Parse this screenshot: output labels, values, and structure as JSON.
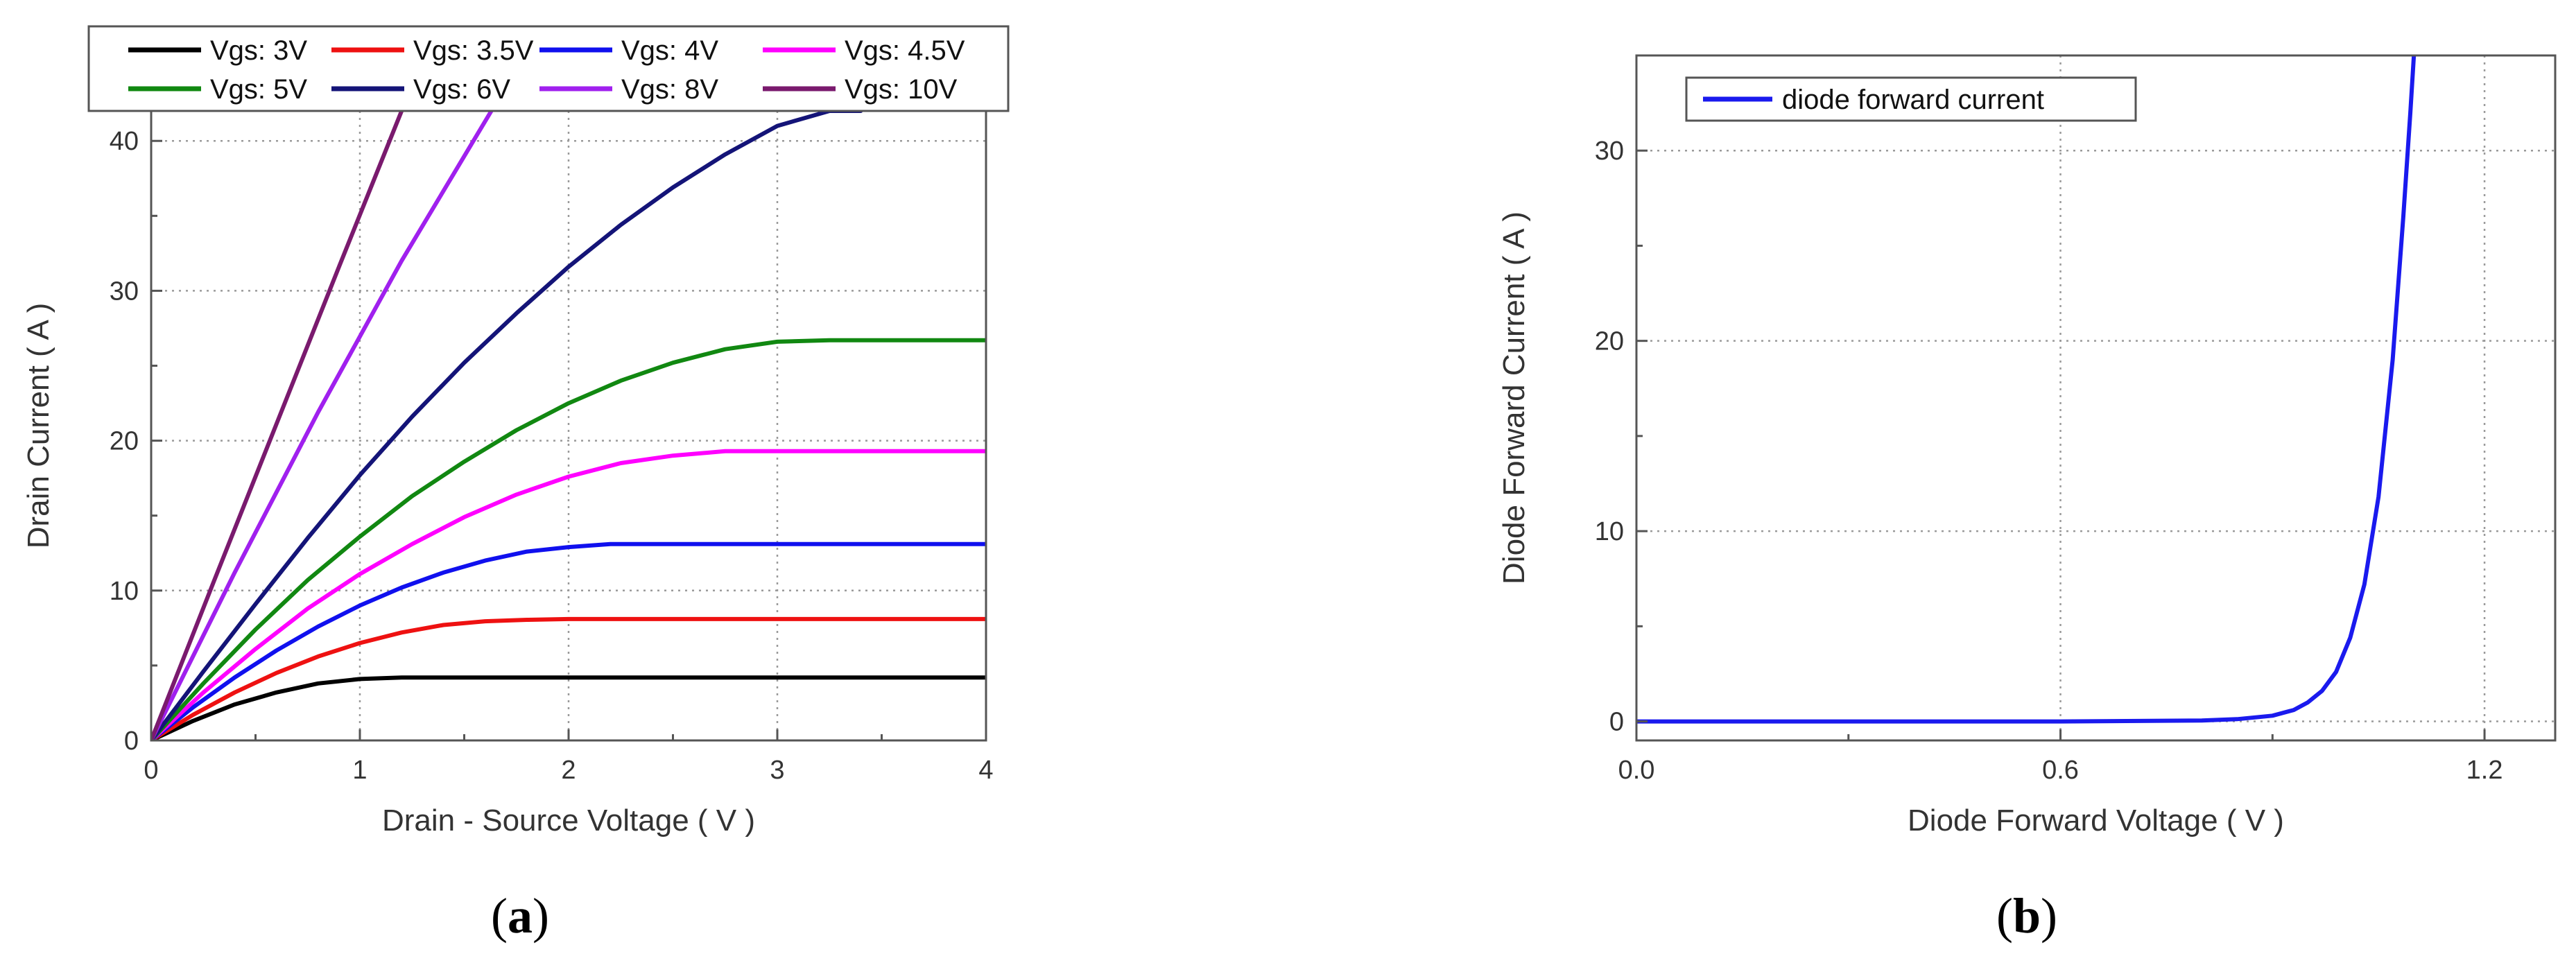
{
  "chart_data": [
    {
      "type": "line",
      "panel_label": "a",
      "title": "",
      "xlabel": "Drain - Source Voltage ( V )",
      "ylabel": "Drain Current ( A )",
      "xlim": [
        0,
        4
      ],
      "ylim": [
        0,
        42
      ],
      "xticks": [
        0,
        1,
        2,
        3,
        4
      ],
      "yticks": [
        0,
        10,
        20,
        30,
        40
      ],
      "grid": true,
      "legend_position": "top",
      "series": [
        {
          "name": "Vgs: 3V",
          "color": "#000000",
          "x": [
            0,
            0.2,
            0.4,
            0.6,
            0.8,
            1.0,
            1.2,
            1.6,
            2.0,
            3.0,
            4.0
          ],
          "y": [
            0,
            1.3,
            2.4,
            3.2,
            3.8,
            4.1,
            4.2,
            4.2,
            4.2,
            4.2,
            4.2
          ]
        },
        {
          "name": "Vgs: 3.5V",
          "color": "#ee1111",
          "x": [
            0,
            0.2,
            0.4,
            0.6,
            0.8,
            1.0,
            1.2,
            1.4,
            1.6,
            1.8,
            2.0,
            3.0,
            4.0
          ],
          "y": [
            0,
            1.7,
            3.2,
            4.5,
            5.6,
            6.5,
            7.2,
            7.7,
            7.95,
            8.05,
            8.1,
            8.1,
            8.1
          ]
        },
        {
          "name": "Vgs: 4V",
          "color": "#1010ee",
          "x": [
            0,
            0.2,
            0.4,
            0.6,
            0.8,
            1.0,
            1.2,
            1.4,
            1.6,
            1.8,
            2.0,
            2.2,
            2.4,
            3.0,
            4.0
          ],
          "y": [
            0,
            2.2,
            4.2,
            6.0,
            7.6,
            9.0,
            10.2,
            11.2,
            12.0,
            12.6,
            12.9,
            13.1,
            13.1,
            13.1,
            13.1
          ]
        },
        {
          "name": "Vgs: 4.5V",
          "color": "#ff00ff",
          "x": [
            0,
            0.25,
            0.5,
            0.75,
            1.0,
            1.25,
            1.5,
            1.75,
            2.0,
            2.25,
            2.5,
            2.75,
            3.0,
            4.0
          ],
          "y": [
            0,
            3.2,
            6.1,
            8.8,
            11.1,
            13.1,
            14.9,
            16.4,
            17.6,
            18.5,
            19.0,
            19.3,
            19.3,
            19.3
          ]
        },
        {
          "name": "Vgs: 5V",
          "color": "#118811",
          "x": [
            0,
            0.25,
            0.5,
            0.75,
            1.0,
            1.25,
            1.5,
            1.75,
            2.0,
            2.25,
            2.5,
            2.75,
            3.0,
            3.25,
            4.0
          ],
          "y": [
            0,
            3.8,
            7.4,
            10.7,
            13.6,
            16.3,
            18.6,
            20.7,
            22.5,
            24.0,
            25.2,
            26.1,
            26.6,
            26.7,
            26.7
          ]
        },
        {
          "name": "Vgs: 6V",
          "color": "#141478",
          "x": [
            0,
            0.25,
            0.5,
            0.75,
            1.0,
            1.25,
            1.5,
            1.75,
            2.0,
            2.25,
            2.5,
            2.75,
            3.0,
            3.25,
            3.4
          ],
          "y": [
            0,
            4.6,
            9.1,
            13.5,
            17.7,
            21.6,
            25.2,
            28.5,
            31.6,
            34.4,
            36.9,
            39.1,
            41.0,
            42.0,
            42.0
          ]
        },
        {
          "name": "Vgs: 8V",
          "color": "#a020ee",
          "x": [
            0,
            0.4,
            0.8,
            1.2,
            1.63
          ],
          "y": [
            0,
            11.2,
            21.9,
            32.0,
            42.0
          ]
        },
        {
          "name": "Vgs: 10V",
          "color": "#7a1a6e",
          "x": [
            0,
            0.3,
            0.6,
            0.9,
            1.2
          ],
          "y": [
            0,
            10.6,
            21.1,
            31.6,
            42.0
          ]
        }
      ]
    },
    {
      "type": "line",
      "panel_label": "b",
      "title": "",
      "xlabel": "Diode Forward Voltage ( V )",
      "ylabel": "Diode Forward Current ( A )",
      "xlim": [
        0,
        1.3
      ],
      "ylim": [
        -1,
        35
      ],
      "xticks": [
        0.0,
        0.6,
        1.2
      ],
      "xtick_labels": [
        "0.0",
        "0.6",
        "1.2"
      ],
      "yticks": [
        0,
        10,
        20,
        30
      ],
      "grid": true,
      "legend_position": "top-left",
      "series": [
        {
          "name": "diode forward current",
          "color": "#1a1aee",
          "x": [
            0,
            0.6,
            0.8,
            0.85,
            0.9,
            0.93,
            0.95,
            0.97,
            0.99,
            1.01,
            1.03,
            1.05,
            1.07,
            1.085,
            1.095,
            1.1
          ],
          "y": [
            0,
            0,
            0.05,
            0.12,
            0.3,
            0.6,
            1.0,
            1.6,
            2.6,
            4.4,
            7.2,
            11.8,
            19.0,
            26.5,
            32.0,
            35.0
          ]
        }
      ]
    }
  ]
}
